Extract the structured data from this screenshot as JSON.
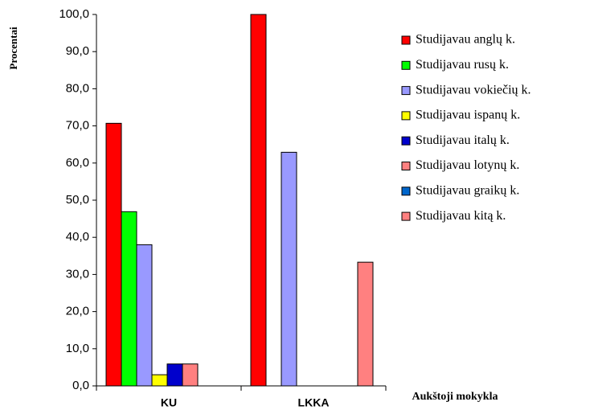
{
  "chart_data": {
    "type": "bar",
    "y_label": "Procentai",
    "x_label": "Aukštoji mokykla",
    "categories": [
      "KU",
      "LKKA"
    ],
    "series": [
      {
        "name": "Studijavau anglų k.",
        "color": "#ff0000",
        "values": [
          70.7,
          100
        ]
      },
      {
        "name": "Studijavau rusų k.",
        "color": "#00ff00",
        "values": [
          46.9,
          0
        ]
      },
      {
        "name": "Studijavau vokiečių k.",
        "color": "#9999ff",
        "values": [
          38.0,
          62.9
        ]
      },
      {
        "name": "Studijavau ispanų k.",
        "color": "#ffff00",
        "values": [
          3.0,
          0
        ]
      },
      {
        "name": "Studijavau italų k.",
        "color": "#0000cc",
        "values": [
          5.9,
          0
        ]
      },
      {
        "name": "Studijavau lotynų k.",
        "color": "#ff8080",
        "values": [
          5.9,
          0
        ]
      },
      {
        "name": "Studijavau graikų k.",
        "color": "#0066cc",
        "values": [
          0,
          0
        ]
      },
      {
        "name": "Studijavau kitą k.",
        "color": "#ff8080",
        "values": [
          0,
          33.3
        ]
      }
    ],
    "ylim": [
      0,
      100
    ],
    "yticks": [
      {
        "value": 0,
        "label": "0,0"
      },
      {
        "value": 10,
        "label": "10,0"
      },
      {
        "value": 20,
        "label": "20,0"
      },
      {
        "value": 30,
        "label": "30,0"
      },
      {
        "value": 40,
        "label": "40,0"
      },
      {
        "value": 50,
        "label": "50,0"
      },
      {
        "value": 60,
        "label": "60,0"
      },
      {
        "value": 70,
        "label": "70,0"
      },
      {
        "value": 80,
        "label": "80,0"
      },
      {
        "value": 90,
        "label": "90,0"
      },
      {
        "value": 100,
        "label": "100,0"
      }
    ],
    "legend": "right"
  }
}
